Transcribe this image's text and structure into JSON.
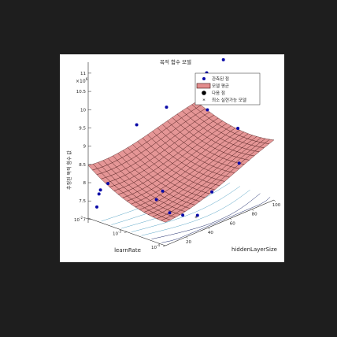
{
  "chart_data": {
    "type": "surface3d",
    "title": "목적 함수 모델",
    "zlabel": "추정된 목적 함수 값",
    "zscale_label": "×10",
    "zscale_exp": "6",
    "xlabel": "learnRate",
    "ylabel": "hiddenLayerSize",
    "zticks": [
      "7",
      "7.5",
      "8",
      "8.5",
      "9",
      "9.5",
      "10",
      "10.5",
      "11"
    ],
    "zlim": [
      6.9,
      11.3
    ],
    "learnrate_ticks": [
      {
        "value": 0.01,
        "base": "10",
        "exp": "-2"
      },
      {
        "value": 0.001,
        "base": "10",
        "exp": "-3"
      },
      {
        "value": 0.0001,
        "base": "10",
        "exp": "-4"
      }
    ],
    "learnrate_lim_log10": [
      -4,
      -2
    ],
    "hiddenlayer_ticks": [
      20,
      40,
      60,
      80,
      100
    ],
    "hiddenlayer_lim": [
      1,
      100
    ],
    "legend": {
      "placement": "top-right",
      "entries": [
        {
          "label": "관측된 점",
          "marker": "blue-dot"
        },
        {
          "label": "모델 평균",
          "marker": "surface-patch"
        },
        {
          "label": "다음 점",
          "marker": "black-dot"
        },
        {
          "label": "최소 실현가능 모델",
          "marker": "red-star"
        }
      ]
    },
    "colors": {
      "surface_fill": "#e38d8d",
      "surface_edge": "#3a0c0c",
      "observed_point": "#0a0aa8",
      "next_point": "#000000",
      "min_feasible": "#cc1111",
      "contour": "#5aa6c7"
    },
    "surface_model": "z = 7.5 + 2.0*s^2*(1-0.5*s) + 0.8*l^2 - 0.5*l*s  where l=(log10(learnRate)+4)/2, s=(hiddenLayerSize-1)/99",
    "observed_points": [
      {
        "learnRate": 0.0035,
        "hiddenLayerSize": 3,
        "value": 7.95
      },
      {
        "learnRate": 0.0048,
        "hiddenLayerSize": 1,
        "value": 7.75
      },
      {
        "learnRate": 0.0056,
        "hiddenLayerSize": 2,
        "value": 7.6
      },
      {
        "learnRate": 0.0068,
        "hiddenLayerSize": 3,
        "value": 7.2
      },
      {
        "learnRate": 0.0025,
        "hiddenLayerSize": 24,
        "value": 9.35
      },
      {
        "learnRate": 0.0012,
        "hiddenLayerSize": 40,
        "value": 9.75
      },
      {
        "learnRate": 0.0009,
        "hiddenLayerSize": 32,
        "value": 7.6
      },
      {
        "learnRate": 0.001,
        "hiddenLayerSize": 28,
        "value": 7.4
      },
      {
        "learnRate": 0.00055,
        "hiddenLayerSize": 31,
        "value": 7.1
      },
      {
        "learnRate": 0.0004,
        "hiddenLayerSize": 38,
        "value": 7.0
      },
      {
        "learnRate": 0.00028,
        "hiddenLayerSize": 46,
        "value": 6.95
      },
      {
        "learnRate": 0.00026,
        "hiddenLayerSize": 58,
        "value": 7.45
      },
      {
        "learnRate": 0.0006,
        "hiddenLayerSize": 68,
        "value": 10.2
      },
      {
        "learnRate": 0.0007,
        "hiddenLayerSize": 69,
        "value": 9.4
      },
      {
        "learnRate": 0.00045,
        "hiddenLayerSize": 90,
        "value": 8.7
      },
      {
        "learnRate": 0.00032,
        "hiddenLayerSize": 86,
        "value": 7.85
      },
      {
        "learnRate": 0.0015,
        "hiddenLayerSize": 80,
        "value": 10.15
      },
      {
        "learnRate": 0.0011,
        "hiddenLayerSize": 99,
        "value": 10.55
      },
      {
        "learnRate": 0.0018,
        "hiddenLayerSize": 98,
        "value": 10.25
      },
      {
        "learnRate": 0.0075,
        "hiddenLayerSize": 100,
        "value": 10.6
      }
    ],
    "next_point": {
      "learnRate": 0.0014,
      "hiddenLayerSize": 99,
      "value": 10.6
    },
    "min_feasible_point": {
      "learnRate": 0.00022,
      "hiddenLayerSize": 41,
      "value": 7.0
    }
  }
}
